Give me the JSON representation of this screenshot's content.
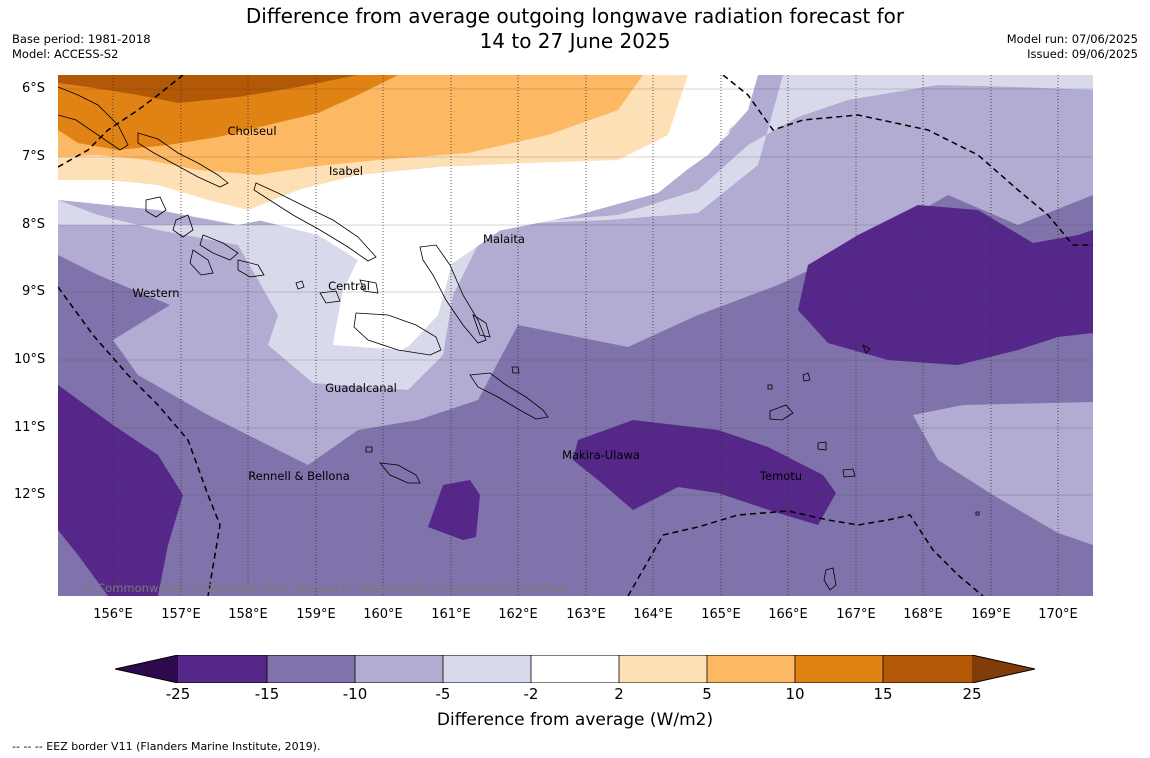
{
  "title_line1": "Difference from average outgoing longwave radiation forecast for",
  "title_line2": "14 to 27 June 2025",
  "meta_left": [
    "Base period: 1981-2018",
    "Model: ACCESS-S2"
  ],
  "meta_right": [
    "Model run: 07/06/2025",
    "Issued: 09/06/2025"
  ],
  "lat_labels": [
    "6°S",
    "7°S",
    "8°S",
    "9°S",
    "10°S",
    "11°S",
    "12°S"
  ],
  "lon_labels": [
    "156°E",
    "157°E",
    "158°E",
    "159°E",
    "160°E",
    "161°E",
    "162°E",
    "163°E",
    "164°E",
    "165°E",
    "166°E",
    "167°E",
    "168°E",
    "169°E",
    "170°E"
  ],
  "places": [
    {
      "name": "Choiseul",
      "label": "Choiseul"
    },
    {
      "name": "Isabel",
      "label": "Isabel"
    },
    {
      "name": "Malaita",
      "label": "Malaita"
    },
    {
      "name": "Western",
      "label": "Western"
    },
    {
      "name": "Central",
      "label": "Central"
    },
    {
      "name": "Guadalcanal",
      "label": "Guadalcanal"
    },
    {
      "name": "Makira-Ulawa",
      "label": "Makira-Ulawa"
    },
    {
      "name": "Temotu",
      "label": "Temotu"
    },
    {
      "name": "Rennell-Bellona",
      "label": "Rennell & Bellona"
    }
  ],
  "copyright": "© Commonwealth of Australia 2025, Bureau of Meteorology, supported by COSPPac",
  "colorbar": {
    "ticks": [
      "-25",
      "-15",
      "-10",
      "-5",
      "-2",
      "2",
      "5",
      "10",
      "15",
      "25"
    ],
    "label": "Difference from average (W/m2)",
    "colors": {
      "below_min": "#2d0a4e",
      "lt_neg15": "#542788",
      "lt_neg10": "#8073ac",
      "lt_neg5": "#b2abd2",
      "lt_neg2": "#d8daeb",
      "neutral": "#ffffff",
      "gt_2": "#fee0b6",
      "gt_5": "#fdb863",
      "gt_10": "#e08214",
      "gt_15": "#b35806",
      "above_max": "#7f3b08"
    }
  },
  "footnote": "--  --  -- EEZ border V11 (Flanders Marine Institute, 2019)."
}
